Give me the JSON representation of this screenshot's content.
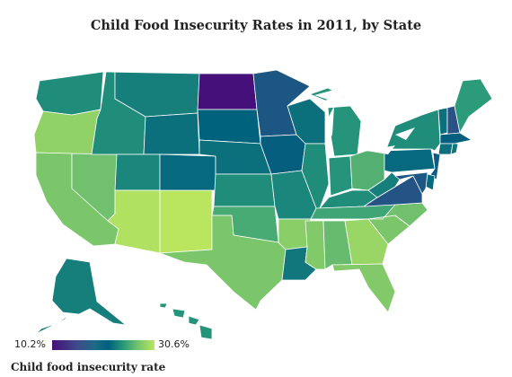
{
  "title": "Child Food Insecurity Rates in 2011, by State",
  "legend": {
    "min_label": "10.2%",
    "max_label": "30.6%",
    "title": "Child food insecurity rate",
    "min": 10.2,
    "max": 30.6,
    "colors": [
      "#45107a",
      "#3d4c8a",
      "#00607d",
      "#2a9a7a",
      "#7bc66b",
      "#b9e65e"
    ]
  },
  "states": [
    {
      "name": "WA",
      "value": 21.5
    },
    {
      "name": "OR",
      "value": 28.0
    },
    {
      "name": "CA",
      "value": 26.5
    },
    {
      "name": "NV",
      "value": 26.0
    },
    {
      "name": "ID",
      "value": 21.5
    },
    {
      "name": "MT",
      "value": 20.5
    },
    {
      "name": "WY",
      "value": 19.5
    },
    {
      "name": "UT",
      "value": 21.0
    },
    {
      "name": "AZ",
      "value": 30.0
    },
    {
      "name": "NM",
      "value": 30.6
    },
    {
      "name": "CO",
      "value": 19.0
    },
    {
      "name": "ND",
      "value": 10.2
    },
    {
      "name": "SD",
      "value": 18.5
    },
    {
      "name": "NE",
      "value": 19.5
    },
    {
      "name": "KS",
      "value": 21.5
    },
    {
      "name": "OK",
      "value": 24.0
    },
    {
      "name": "TX",
      "value": 26.5
    },
    {
      "name": "MN",
      "value": 16.5
    },
    {
      "name": "IA",
      "value": 18.0
    },
    {
      "name": "MO",
      "value": 21.0
    },
    {
      "name": "AR",
      "value": 27.5
    },
    {
      "name": "LA",
      "value": 20.0
    },
    {
      "name": "WI",
      "value": 19.5
    },
    {
      "name": "IL",
      "value": 21.5
    },
    {
      "name": "MI",
      "value": 22.0
    },
    {
      "name": "IN",
      "value": 22.0
    },
    {
      "name": "OH",
      "value": 24.5
    },
    {
      "name": "KY",
      "value": 21.5
    },
    {
      "name": "TN",
      "value": 23.5
    },
    {
      "name": "MS",
      "value": 27.0
    },
    {
      "name": "AL",
      "value": 25.5
    },
    {
      "name": "GA",
      "value": 28.5
    },
    {
      "name": "FL",
      "value": 27.0
    },
    {
      "name": "SC",
      "value": 26.5
    },
    {
      "name": "NC",
      "value": 26.0
    },
    {
      "name": "VA",
      "value": 16.0
    },
    {
      "name": "WV",
      "value": 20.5
    },
    {
      "name": "PA",
      "value": 19.0
    },
    {
      "name": "NY",
      "value": 21.5
    },
    {
      "name": "VT",
      "value": 19.5
    },
    {
      "name": "NH",
      "value": 15.5
    },
    {
      "name": "ME",
      "value": 22.5
    },
    {
      "name": "MA",
      "value": 18.0
    },
    {
      "name": "CT",
      "value": 19.5
    },
    {
      "name": "RI",
      "value": 20.0
    },
    {
      "name": "NJ",
      "value": 17.5
    },
    {
      "name": "DE",
      "value": 19.0
    },
    {
      "name": "MD",
      "value": 16.5
    },
    {
      "name": "AK",
      "value": 20.5
    },
    {
      "name": "HI",
      "value": 22.0
    }
  ]
}
